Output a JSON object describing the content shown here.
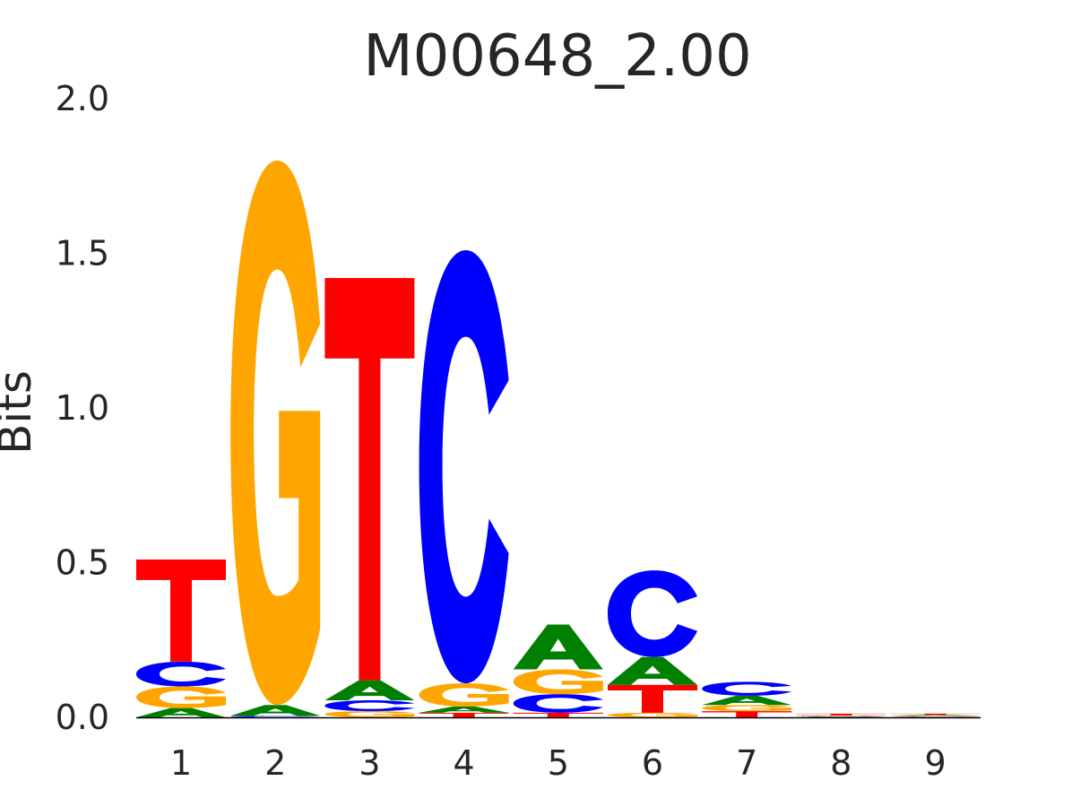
{
  "chart_data": {
    "type": "sequence-logo",
    "title": "M00648_2.00",
    "ylabel": "Bits",
    "xlabel": "",
    "ylim": [
      0,
      2.0
    ],
    "yticks": [
      "0.0",
      "0.5",
      "1.0",
      "1.5",
      "2.0"
    ],
    "categories": [
      "1",
      "2",
      "3",
      "4",
      "5",
      "6",
      "7",
      "8",
      "9"
    ],
    "colors": {
      "A": "#008000",
      "C": "#0000ff",
      "G": "#ffa500",
      "T": "#ff0000"
    },
    "grid": false,
    "positions": [
      {
        "A": 0.03,
        "G": 0.07,
        "C": 0.08,
        "T": 0.33
      },
      {
        "C": 0.005,
        "A": 0.035,
        "G": 1.76
      },
      {
        "G": 0.02,
        "C": 0.035,
        "A": 0.065,
        "T": 1.3
      },
      {
        "T": 0.015,
        "A": 0.02,
        "G": 0.075,
        "C": 1.4
      },
      {
        "T": 0.015,
        "C": 0.06,
        "G": 0.08,
        "A": 0.145
      },
      {
        "G": 0.015,
        "T": 0.09,
        "A": 0.09,
        "C": 0.28
      },
      {
        "T": 0.02,
        "G": 0.02,
        "A": 0.03,
        "C": 0.045
      },
      {
        "A": 0.002,
        "C": 0.002,
        "G": 0.002,
        "T": 0.006
      },
      {
        "C": 0.002,
        "G": 0.003,
        "A": 0.003,
        "T": 0.004
      }
    ]
  }
}
